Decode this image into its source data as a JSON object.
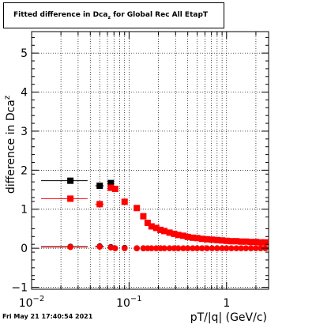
{
  "title": {
    "prefix": "Fitted difference in Dca",
    "sub": "z",
    "suffix": " for Global Rec All EtapT"
  },
  "footer_date": "Fri May 21 17:40:54 2021",
  "chart_data": {
    "type": "scatter",
    "title": "Fitted difference in Dca_z for Global Rec All EtapT",
    "xlabel": "pT/|q| (GeV/c)",
    "ylabel_prefix": "difference in Dca",
    "ylabel_sub": "z",
    "xscale": "log",
    "xlim": [
      0.01,
      2.7
    ],
    "ylim": [
      -1.05,
      5.55
    ],
    "grid": true,
    "x_tick_labels": [
      {
        "x": 0.01,
        "base": "10",
        "exp": "-2"
      },
      {
        "x": 0.1,
        "base": "10",
        "exp": "-1"
      },
      {
        "x": 1,
        "base": "1",
        "exp": ""
      }
    ],
    "y_ticks": [
      -1,
      0,
      1,
      2,
      3,
      4,
      5
    ],
    "colors": {
      "black": "#000000",
      "red": "#ff0000"
    },
    "series": [
      {
        "color": "black",
        "marker": "square",
        "x": [
          0.025,
          0.05,
          0.065
        ],
        "xerr": [
          0.0125,
          0.005,
          0.004
        ],
        "y": [
          1.73,
          1.6,
          1.67
        ]
      },
      {
        "color": "red",
        "marker": "square",
        "x": [
          0.025,
          0.05,
          0.065,
          0.072,
          0.09,
          0.12,
          0.14,
          0.155,
          0.17,
          0.19,
          0.21,
          0.23,
          0.26,
          0.29,
          0.32,
          0.36,
          0.4,
          0.45,
          0.5,
          0.56,
          0.63,
          0.71,
          0.8,
          0.9,
          1.0,
          1.12,
          1.26,
          1.41,
          1.58,
          1.78,
          2.0,
          2.24,
          2.5
        ],
        "xerr": [
          0.0125,
          0.005,
          0.004,
          0.004,
          0.005,
          0.006,
          0.006,
          0.006,
          0.007,
          0.008,
          0.009,
          0.01,
          0.012,
          0.014,
          0.016,
          0.018,
          0.02,
          0.022,
          0.025,
          0.028,
          0.032,
          0.035,
          0.04,
          0.045,
          0.05,
          0.056,
          0.063,
          0.07,
          0.079,
          0.089,
          0.1,
          0.11,
          0.12
        ],
        "y": [
          1.27,
          1.13,
          1.55,
          1.52,
          1.19,
          1.03,
          0.82,
          0.65,
          0.56,
          0.52,
          0.47,
          0.44,
          0.4,
          0.37,
          0.34,
          0.32,
          0.29,
          0.27,
          0.26,
          0.24,
          0.23,
          0.22,
          0.21,
          0.2,
          0.19,
          0.18,
          0.18,
          0.17,
          0.17,
          0.16,
          0.16,
          0.15,
          0.15
        ]
      },
      {
        "color": "black",
        "marker": "circle",
        "x": [
          0.025,
          0.05,
          0.065,
          0.09,
          0.12,
          0.14
        ],
        "xerr": [
          0.0125,
          0.005,
          0.004,
          0.005,
          0.006,
          0.006
        ],
        "y": [
          0.04,
          0.05,
          0.03,
          0.01,
          0.0,
          0.0
        ]
      },
      {
        "color": "red",
        "marker": "circle",
        "x": [
          0.025,
          0.05,
          0.065,
          0.072,
          0.09,
          0.12,
          0.14,
          0.155,
          0.17,
          0.19,
          0.21,
          0.23,
          0.26,
          0.29,
          0.32,
          0.36,
          0.4,
          0.45,
          0.5,
          0.56,
          0.63,
          0.71,
          0.8,
          0.9,
          1.0,
          1.12,
          1.26,
          1.41,
          1.58,
          1.78,
          2.0,
          2.24,
          2.5
        ],
        "xerr": [
          0.0125,
          0.005,
          0.004,
          0.004,
          0.005,
          0.006,
          0.006,
          0.006,
          0.007,
          0.008,
          0.009,
          0.01,
          0.012,
          0.014,
          0.016,
          0.018,
          0.02,
          0.022,
          0.025,
          0.028,
          0.032,
          0.035,
          0.04,
          0.045,
          0.05,
          0.056,
          0.063,
          0.07,
          0.079,
          0.089,
          0.1,
          0.11,
          0.12
        ],
        "y": [
          0.03,
          0.04,
          0.02,
          0.0,
          0.0,
          0.0,
          0.0,
          0.0,
          0.0,
          0.0,
          0.0,
          0.0,
          0.0,
          0.0,
          0.0,
          0.0,
          0.0,
          0.0,
          0.0,
          0.0,
          0.0,
          0.0,
          0.0,
          0.0,
          0.0,
          0.0,
          0.0,
          0.0,
          0.0,
          0.0,
          0.0,
          0.0,
          0.0
        ]
      }
    ]
  }
}
